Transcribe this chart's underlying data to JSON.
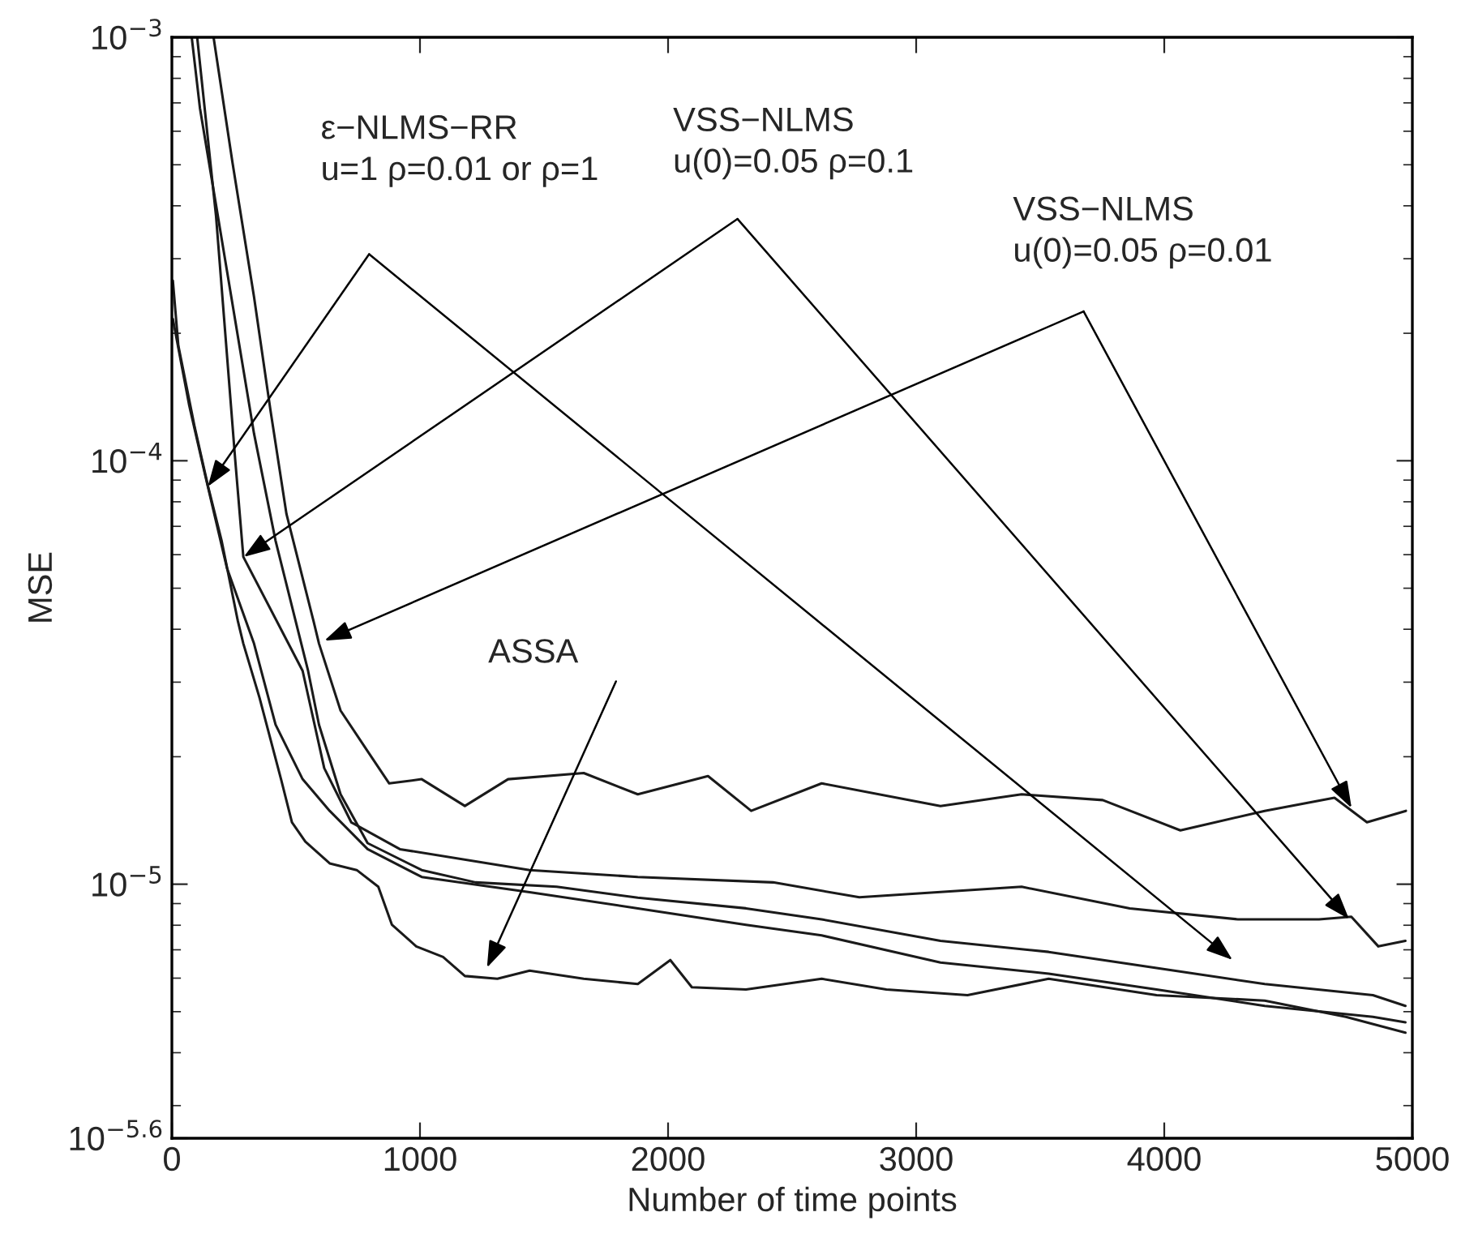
{
  "chart_data": {
    "type": "line",
    "xlabel": "Number of time points",
    "ylabel": "MSE",
    "log": "y",
    "xlim": [
      0,
      5000
    ],
    "xticks": [
      0,
      1000,
      2000,
      3000,
      4000,
      5000
    ],
    "ylim": [
      2.512e-06,
      0.001
    ],
    "yticks": [
      {
        "value": 2.512e-06,
        "label": "10$^{−5.6}$"
      },
      {
        "value": 1e-05,
        "label": "10$^{−5}$"
      },
      {
        "value": 0.0001,
        "label": "10$^{−4}$"
      },
      {
        "value": 0.001,
        "label": "10$^{−3}$"
      }
    ],
    "grid": false,
    "legend": false,
    "marker": "none",
    "line_style": "solid",
    "series": [
      {
        "color": "#1a1a1a",
        "x": [
          168,
          244,
          331,
          397,
          462,
          571,
          593,
          680,
          789,
          876,
          1007,
          1181,
          1355,
          1660,
          1878,
          2161,
          2335,
          2619,
          3098,
          3425,
          3752,
          4065,
          4405,
          4686,
          4817,
          4974
        ],
        "values": [
          0.001,
          0.000507,
          0.000244,
          0.000132,
          7.48e-05,
          4.18e-05,
          3.7e-05,
          2.57e-05,
          2.06e-05,
          1.73e-05,
          1.77e-05,
          1.53e-05,
          1.77e-05,
          1.83e-05,
          1.63e-05,
          1.8e-05,
          1.49e-05,
          1.73e-05,
          1.53e-05,
          1.63e-05,
          1.58e-05,
          1.34e-05,
          1.49e-05,
          1.6e-05,
          1.4e-05,
          1.49e-05
        ]
      },
      {
        "color": "#1a1a1a",
        "x": [
          102,
          178,
          255,
          288,
          527,
          614,
          723,
          919,
          1442,
          1878,
          2423,
          2771,
          3425,
          3861,
          4297,
          4624,
          4754,
          4863,
          4972
        ],
        "values": [
          0.001,
          0.000378,
          0.000101,
          5.93e-05,
          3.19e-05,
          1.88e-05,
          1.4e-05,
          1.21e-05,
          1.08e-05,
          1.04e-05,
          1.01e-05,
          9.31e-06,
          9.86e-06,
          8.77e-06,
          8.26e-06,
          8.26e-06,
          8.38e-06,
          7.13e-06,
          7.35e-06
        ]
      },
      {
        "color": "#1a1a1a",
        "x": [
          80,
          113,
          222,
          331,
          418,
          549,
          593,
          680,
          789,
          1007,
          1224,
          1551,
          1878,
          2314,
          2619,
          3098,
          3534,
          3969,
          4405,
          4841,
          4972
        ],
        "values": [
          0.001,
          0.000681,
          0.000281,
          0.000116,
          6.47e-05,
          3.19e-05,
          2.38e-05,
          1.63e-05,
          1.25e-05,
          1.08e-05,
          1.01e-05,
          9.86e-06,
          9.29e-06,
          8.77e-06,
          8.26e-06,
          7.35e-06,
          6.92e-06,
          6.34e-06,
          5.81e-06,
          5.47e-06,
          5.16e-06
        ]
      },
      {
        "color": "#1a1a1a",
        "x": [
          4,
          70,
          135,
          222,
          331,
          418,
          527,
          636,
          789,
          1007,
          1442,
          1878,
          2314,
          2619,
          3098,
          3534,
          3969,
          4405,
          4841,
          4972
        ],
        "values": [
          0.000216,
          0.000135,
          9.2e-05,
          5.58e-05,
          3.7e-05,
          2.38e-05,
          1.77e-05,
          1.49e-05,
          1.21e-05,
          1.04e-05,
          9.57e-06,
          8.77e-06,
          8.02e-06,
          7.57e-06,
          6.53e-06,
          6.15e-06,
          5.64e-06,
          5.16e-06,
          4.86e-06,
          4.72e-06
        ]
      },
      {
        "color": "#1a1a1a",
        "x": [
          4,
          26,
          92,
          146,
          200,
          266,
          288,
          353,
          440,
          484,
          538,
          636,
          745,
          832,
          887,
          985,
          1093,
          1181,
          1312,
          1442,
          1660,
          1878,
          2009,
          2096,
          2314,
          2619,
          2880,
          3207,
          3534,
          3969,
          4405,
          4732,
          4972
        ],
        "values": [
          0.000266,
          0.000187,
          0.00012,
          8.69e-05,
          6.49e-05,
          4.18e-05,
          3.7e-05,
          2.76e-05,
          1.77e-05,
          1.4e-05,
          1.26e-05,
          1.12e-05,
          1.08e-05,
          9.86e-06,
          8.02e-06,
          7.13e-06,
          6.73e-06,
          6.07e-06,
          5.98e-06,
          6.25e-06,
          5.98e-06,
          5.81e-06,
          6.62e-06,
          5.71e-06,
          5.64e-06,
          5.98e-06,
          5.64e-06,
          5.47e-06,
          5.98e-06,
          5.47e-06,
          5.31e-06,
          4.86e-06,
          4.46e-06
        ]
      }
    ],
    "annotations": [
      "ε−NLMS−RR\nu=1 ρ=0.01 or ρ=1",
      "VSS−NLMS\nu(0)=0.05 ρ=0.1",
      "VSS−NLMS\nu(0)=0.05 ρ=0.01",
      "ASSA"
    ]
  }
}
